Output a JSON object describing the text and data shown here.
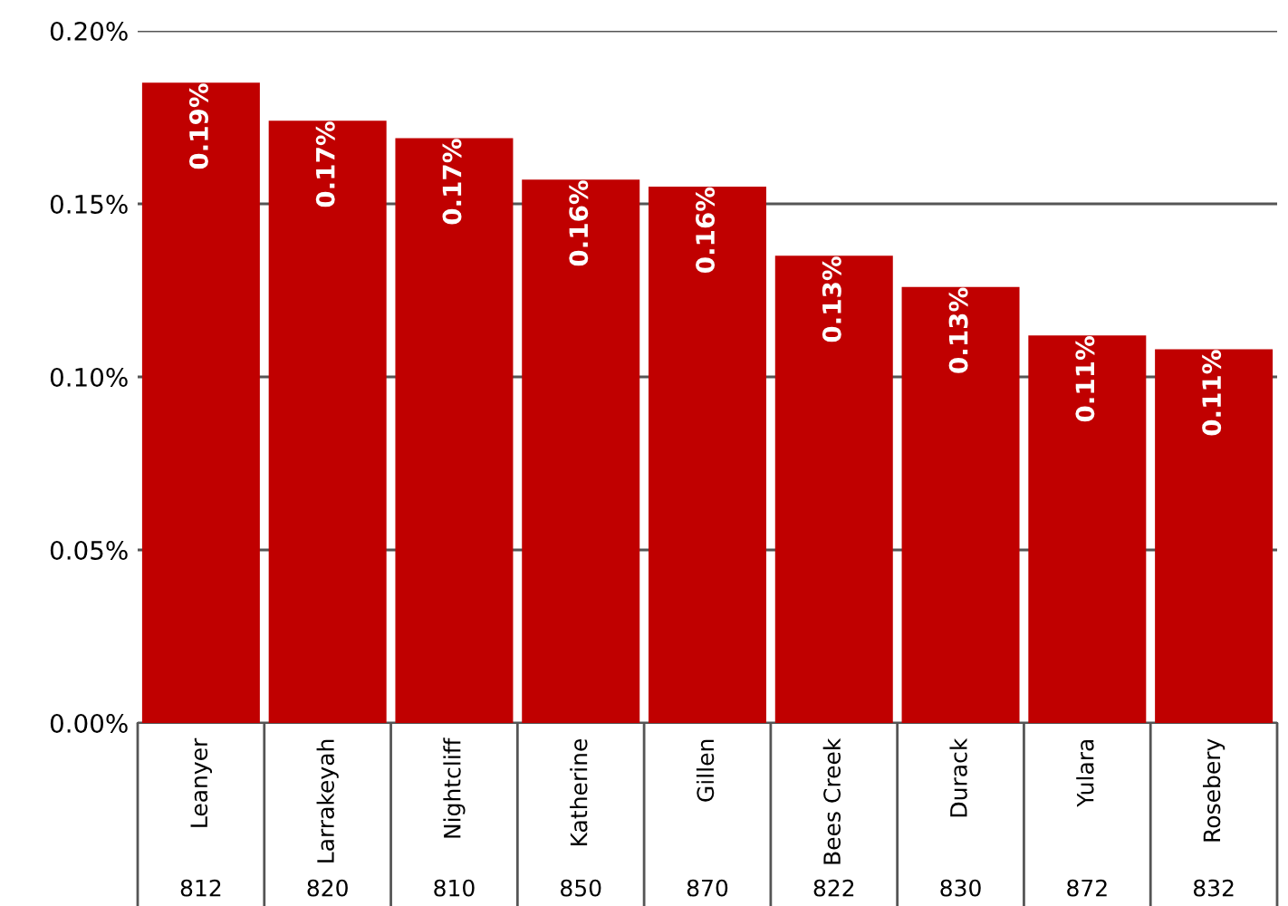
{
  "chart_data": {
    "type": "bar",
    "categories": [
      "Leanyer\n812",
      "Larrakeyah\n820",
      "Nightcliff\n810",
      "Katherine\n850",
      "Gillen\n870",
      "Bees Creek\n822",
      "Durack\n830",
      "Yulara\n872",
      "Rosebery\n832"
    ],
    "values": [
      0.185,
      0.174,
      0.169,
      0.157,
      0.155,
      0.135,
      0.126,
      0.112,
      0.108
    ],
    "value_labels": [
      "0.19%",
      "0.17%",
      "0.17%",
      "0.16%",
      "0.16%",
      "0.13%",
      "0.13%",
      "0.11%",
      "0.11%"
    ],
    "color": "#c00000",
    "ylim": [
      0,
      0.2
    ],
    "yticks": [
      {
        "value": 0,
        "label": "0.00%"
      },
      {
        "value": 0.05,
        "label": "0.05%"
      },
      {
        "value": 0.1,
        "label": "0.10%"
      },
      {
        "value": 0.15,
        "label": "0.15%"
      },
      {
        "value": 0.2,
        "label": "0.20%"
      }
    ],
    "grid": "y"
  }
}
